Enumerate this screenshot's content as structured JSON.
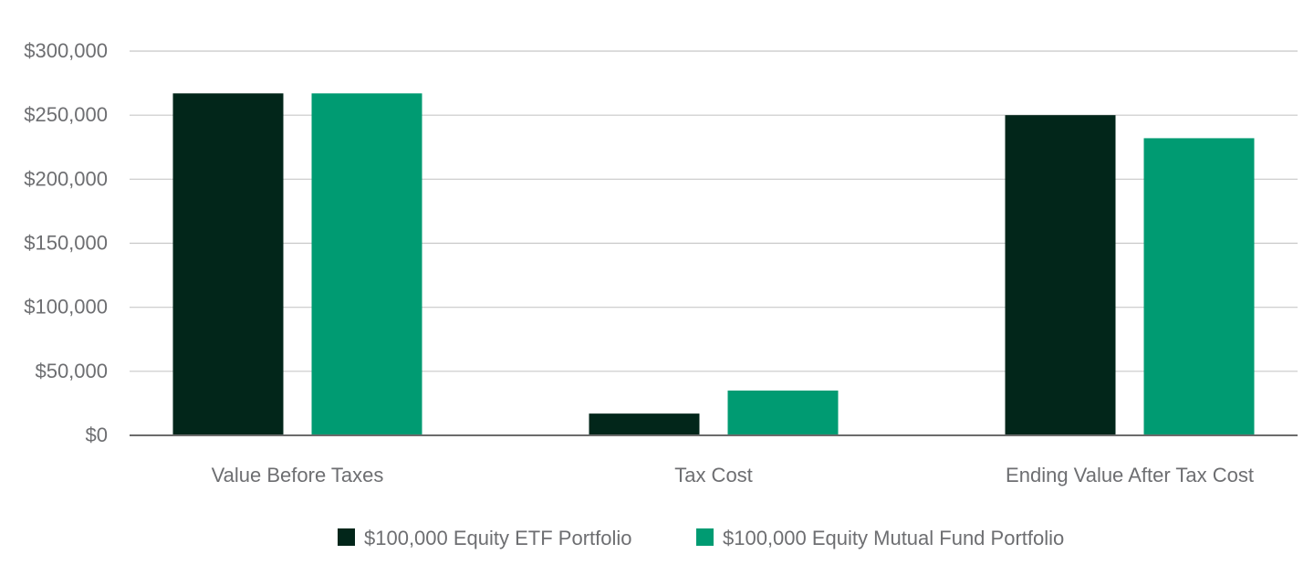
{
  "chart_data": {
    "type": "bar",
    "title": "",
    "xlabel": "",
    "ylabel": "",
    "categories": [
      "Value Before Taxes",
      "Tax Cost",
      "Ending Value After Tax Cost"
    ],
    "series": [
      {
        "name": "$100,000 Equity ETF Portfolio",
        "color": "#02261a",
        "values": [
          267000,
          17000,
          250000
        ]
      },
      {
        "name": "$100,000 Equity Mutual Fund Portfolio",
        "color": "#009b72",
        "values": [
          267000,
          35000,
          232000
        ]
      }
    ],
    "ylim": [
      0,
      300000
    ],
    "yticks": [
      0,
      50000,
      100000,
      150000,
      200000,
      250000,
      300000
    ],
    "ytick_labels": [
      "$0",
      "$50,000",
      "$100,000",
      "$150,000",
      "$200,000",
      "$250,000",
      "$300,000"
    ],
    "grid": true,
    "legend_position": "bottom-center"
  }
}
